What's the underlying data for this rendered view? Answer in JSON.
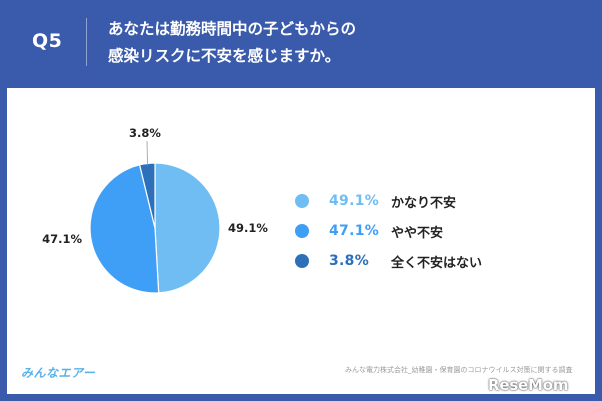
{
  "header": {
    "question_number": "Q5",
    "question_line1": "あなたは勤務時間中の子どもからの",
    "question_line2": "感染リスクに不安を感じますか。"
  },
  "colors": {
    "background": "#3a5bab",
    "card": "#ffffff",
    "slice_1": "#6fbdf3",
    "slice_2": "#3f9ef5",
    "slice_3": "#2d6fb8",
    "pct_1": "#6fbdf3",
    "pct_2": "#3f9ef5",
    "pct_3": "#2d6fb8"
  },
  "chart_data": {
    "type": "pie",
    "slices": [
      {
        "label": "かなり不安",
        "value": 49.1,
        "display": "49.1%"
      },
      {
        "label": "やや不安",
        "value": 47.1,
        "display": "47.1%"
      },
      {
        "label": "全く不安はない",
        "value": 3.8,
        "display": "3.8%"
      }
    ],
    "legend_position": "right"
  },
  "footer": {
    "brand": "みんなエアー",
    "source": "みんな電力株式会社_幼稚園・保育園のコロナウイルス対策に関する調査"
  },
  "watermark": "ReseMom"
}
